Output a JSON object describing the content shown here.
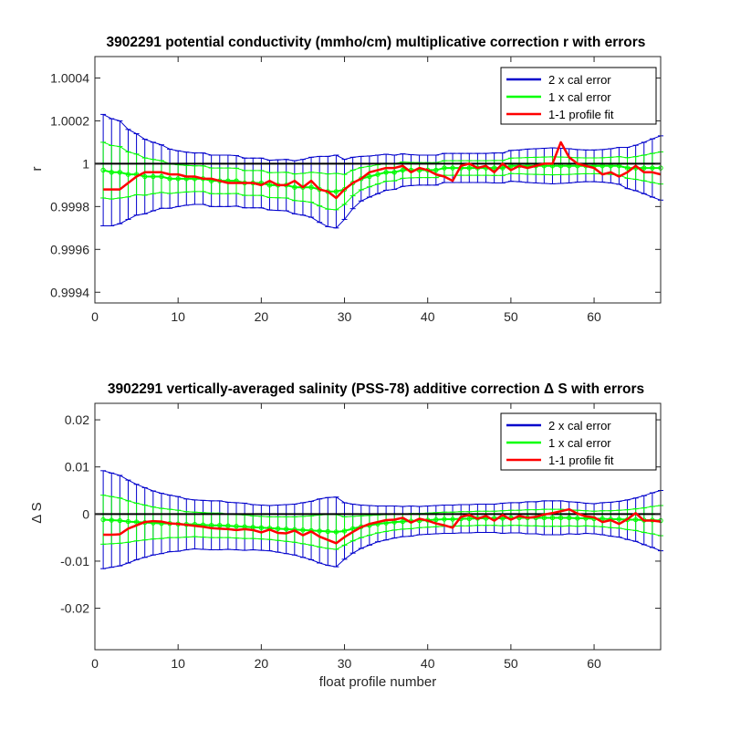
{
  "xlabel": "float profile number",
  "legend_labels": [
    "2 x cal error",
    "1 x cal error",
    "1-1 profile fit"
  ],
  "colors": {
    "cal2": "#0000cc",
    "cal1": "#00ff00",
    "fit": "#ff0000",
    "ref": "#000000",
    "axis": "#262626"
  },
  "chart_data": [
    {
      "type": "line",
      "title": "3902291 potential conductivity (mmho/cm) multiplicative correction r with errors",
      "xlabel": "",
      "ylabel": "r",
      "xlim": [
        0,
        68
      ],
      "ylim": [
        0.99935,
        1.0005
      ],
      "xticks": [
        0,
        10,
        20,
        30,
        40,
        50,
        60
      ],
      "xtick_labels": [
        "0",
        "10",
        "20",
        "30",
        "40",
        "50",
        "60"
      ],
      "yticks": [
        0.9994,
        0.9996,
        0.9998,
        1.0,
        1.0002,
        1.0004
      ],
      "ytick_labels": [
        "0.9994",
        "0.9996",
        "0.9998",
        "1",
        "1.0002",
        "1.0004"
      ],
      "reference_line": 1.0,
      "legend": {
        "location": "top-right",
        "entries": [
          "2 x cal error",
          "1 x cal error",
          "1-1 profile fit"
        ]
      },
      "x": [
        1,
        2,
        3,
        4,
        5,
        6,
        7,
        8,
        9,
        10,
        11,
        12,
        13,
        14,
        15,
        16,
        17,
        18,
        19,
        20,
        21,
        22,
        23,
        24,
        25,
        26,
        27,
        28,
        29,
        30,
        31,
        32,
        33,
        34,
        35,
        36,
        37,
        38,
        39,
        40,
        41,
        42,
        43,
        44,
        45,
        46,
        47,
        48,
        49,
        50,
        51,
        52,
        53,
        54,
        55,
        56,
        57,
        58,
        59,
        60,
        61,
        62,
        63,
        64,
        65,
        66,
        67,
        68
      ],
      "series": [
        {
          "name": "1-1 profile fit",
          "values": [
            0.99988,
            0.99988,
            0.99988,
            0.99991,
            0.99994,
            0.99996,
            0.99996,
            0.99996,
            0.99995,
            0.99995,
            0.99994,
            0.99994,
            0.99993,
            0.99993,
            0.99992,
            0.99991,
            0.99991,
            0.99991,
            0.99991,
            0.9999,
            0.99992,
            0.9999,
            0.9999,
            0.99992,
            0.99989,
            0.99992,
            0.99988,
            0.99987,
            0.99984,
            0.99988,
            0.99991,
            0.99993,
            0.99996,
            0.99997,
            0.99998,
            0.99998,
            0.99999,
            0.99996,
            0.99998,
            0.99997,
            0.99995,
            0.99994,
            0.99992,
            0.99999,
            1.0,
            0.99998,
            0.99999,
            0.99996,
            1.0,
            0.99997,
            0.99999,
            0.99998,
            0.99999,
            1.0,
            1.0,
            1.0001,
            1.00003,
            1.0,
            0.99999,
            0.99998,
            0.99995,
            0.99996,
            0.99994,
            0.99996,
            0.99999,
            0.99996,
            0.99996,
            0.99995
          ]
        },
        {
          "name": "1 x cal error",
          "values": [
            0.99997,
            0.99996,
            0.99996,
            0.99995,
            0.99995,
            0.99994,
            0.99994,
            0.99994,
            0.99993,
            0.99993,
            0.99993,
            0.99993,
            0.99993,
            0.99992,
            0.99992,
            0.99992,
            0.99992,
            0.99991,
            0.99991,
            0.99991,
            0.9999,
            0.9999,
            0.9999,
            0.99989,
            0.99989,
            0.99989,
            0.99988,
            0.99987,
            0.99987,
            0.99988,
            0.99991,
            0.99993,
            0.99994,
            0.99995,
            0.99996,
            0.99996,
            0.99997,
            0.99997,
            0.99997,
            0.99997,
            0.99997,
            0.99998,
            0.99998,
            0.99998,
            0.99998,
            0.99998,
            0.99998,
            0.99998,
            0.99998,
            0.99999,
            0.99999,
            0.99999,
            0.99999,
            0.99999,
            0.99999,
            0.99999,
            0.99999,
            0.99999,
            0.99999,
            0.99999,
            0.99999,
            0.99999,
            0.99999,
            0.99998,
            0.99998,
            0.99998,
            0.99998,
            0.99998
          ],
          "errors": [
            0.00013,
            0.000125,
            0.00012,
            0.000105,
            9.5e-05,
            8.7e-05,
            8e-05,
            7.4e-05,
            6.9e-05,
            6.5e-05,
            6.2e-05,
            6e-05,
            6e-05,
            6e-05,
            6e-05,
            6e-05,
            5.9e-05,
            5.8e-05,
            5.8e-05,
            5.8e-05,
            5.8e-05,
            5.9e-05,
            6e-05,
            6.2e-05,
            6.5e-05,
            7e-05,
            7.7e-05,
            8.2e-05,
            8.5e-05,
            7e-05,
            6e-05,
            5.2e-05,
            4.8e-05,
            4.5e-05,
            4.2e-05,
            4e-05,
            3.8e-05,
            3.6e-05,
            3.5e-05,
            3.5e-05,
            3.5e-05,
            3.4e-05,
            3.4e-05,
            3.4e-05,
            3.4e-05,
            3.4e-05,
            3.4e-05,
            3.5e-05,
            3.5e-05,
            3.6e-05,
            3.7e-05,
            3.9e-05,
            4e-05,
            4.1e-05,
            4.2e-05,
            4.1e-05,
            4e-05,
            3.8e-05,
            3.7e-05,
            3.7e-05,
            3.8e-05,
            4e-05,
            4.3e-05,
            4.8e-05,
            5.3e-05,
            6e-05,
            6.8e-05,
            7.5e-05
          ]
        }
      ]
    },
    {
      "type": "line",
      "title": "3902291 vertically-averaged salinity (PSS-78) additive correction Δ S with errors",
      "xlabel": "float profile number",
      "ylabel": "Δ S",
      "xlim": [
        0,
        68
      ],
      "ylim": [
        -0.0288,
        0.0235
      ],
      "xticks": [
        0,
        10,
        20,
        30,
        40,
        50,
        60
      ],
      "xtick_labels": [
        "0",
        "10",
        "20",
        "30",
        "40",
        "50",
        "60"
      ],
      "yticks": [
        -0.02,
        -0.01,
        0,
        0.01,
        0.02
      ],
      "ytick_labels": [
        "-0.02",
        "-0.01",
        "0",
        "0.01",
        "0.02"
      ],
      "reference_line": 0,
      "legend": {
        "location": "top-right",
        "entries": [
          "2 x cal error",
          "1 x cal error",
          "1-1 profile fit"
        ]
      },
      "x": [
        1,
        2,
        3,
        4,
        5,
        6,
        7,
        8,
        9,
        10,
        11,
        12,
        13,
        14,
        15,
        16,
        17,
        18,
        19,
        20,
        21,
        22,
        23,
        24,
        25,
        26,
        27,
        28,
        29,
        30,
        31,
        32,
        33,
        34,
        35,
        36,
        37,
        38,
        39,
        40,
        41,
        42,
        43,
        44,
        45,
        46,
        47,
        48,
        49,
        50,
        51,
        52,
        53,
        54,
        55,
        56,
        57,
        58,
        59,
        60,
        61,
        62,
        63,
        64,
        65,
        66,
        67,
        68
      ],
      "series": [
        {
          "name": "1-1 profile fit",
          "values": [
            -0.0044,
            -0.0044,
            -0.0043,
            -0.0031,
            -0.0024,
            -0.0017,
            -0.0015,
            -0.0016,
            -0.002,
            -0.0021,
            -0.0023,
            -0.0025,
            -0.0027,
            -0.003,
            -0.0031,
            -0.0032,
            -0.0034,
            -0.0032,
            -0.0034,
            -0.0039,
            -0.0033,
            -0.004,
            -0.0041,
            -0.0035,
            -0.0045,
            -0.0037,
            -0.0048,
            -0.0055,
            -0.0062,
            -0.0049,
            -0.0038,
            -0.0028,
            -0.0021,
            -0.0017,
            -0.0013,
            -0.0012,
            -0.0008,
            -0.0018,
            -0.001,
            -0.0014,
            -0.002,
            -0.0024,
            -0.0029,
            -0.0006,
            -0.0002,
            -0.001,
            -0.0004,
            -0.0014,
            -0.0002,
            -0.0012,
            -0.0004,
            -0.0008,
            -0.0006,
            -0.0001,
            0.0002,
            0.0006,
            0.001,
            0.0001,
            -0.0005,
            -0.0007,
            -0.0017,
            -0.0013,
            -0.0021,
            -0.0011,
            0.0002,
            -0.0014,
            -0.0014,
            -0.0016
          ]
        },
        {
          "name": "1 x cal error",
          "values": [
            -0.0012,
            -0.0013,
            -0.0014,
            -0.0016,
            -0.0017,
            -0.0018,
            -0.0019,
            -0.002,
            -0.002,
            -0.0021,
            -0.0022,
            -0.0022,
            -0.0023,
            -0.0024,
            -0.0024,
            -0.0025,
            -0.0026,
            -0.0027,
            -0.0028,
            -0.0029,
            -0.003,
            -0.0031,
            -0.0032,
            -0.0033,
            -0.0034,
            -0.0035,
            -0.0036,
            -0.0037,
            -0.0038,
            -0.0036,
            -0.0031,
            -0.0027,
            -0.0024,
            -0.0021,
            -0.0019,
            -0.0017,
            -0.0016,
            -0.0015,
            -0.0014,
            -0.0013,
            -0.0012,
            -0.0011,
            -0.0011,
            -0.001,
            -0.001,
            -0.0009,
            -0.0009,
            -0.0009,
            -0.0009,
            -0.0008,
            -0.0008,
            -0.0008,
            -0.0008,
            -0.0008,
            -0.0008,
            -0.0008,
            -0.0008,
            -0.0009,
            -0.0009,
            -0.001,
            -0.001,
            -0.0011,
            -0.0011,
            -0.0012,
            -0.0012,
            -0.0013,
            -0.0013,
            -0.0014
          ],
          "errors": [
            0.0052,
            0.005,
            0.0048,
            0.0044,
            0.004,
            0.0037,
            0.0034,
            0.0032,
            0.003,
            0.0029,
            0.0027,
            0.0026,
            0.0026,
            0.0026,
            0.0026,
            0.0025,
            0.0025,
            0.0025,
            0.0024,
            0.0024,
            0.0024,
            0.0025,
            0.0026,
            0.0027,
            0.0029,
            0.0031,
            0.0034,
            0.0036,
            0.0037,
            0.003,
            0.0026,
            0.0023,
            0.0021,
            0.0019,
            0.0018,
            0.0017,
            0.0016,
            0.0016,
            0.0015,
            0.0015,
            0.0015,
            0.0015,
            0.0015,
            0.0015,
            0.0015,
            0.0015,
            0.0015,
            0.0015,
            0.0016,
            0.0016,
            0.0016,
            0.0017,
            0.0017,
            0.0018,
            0.0018,
            0.0018,
            0.0017,
            0.0017,
            0.0016,
            0.0016,
            0.0017,
            0.0018,
            0.0019,
            0.0021,
            0.0023,
            0.0026,
            0.0029,
            0.0032
          ]
        }
      ]
    }
  ]
}
